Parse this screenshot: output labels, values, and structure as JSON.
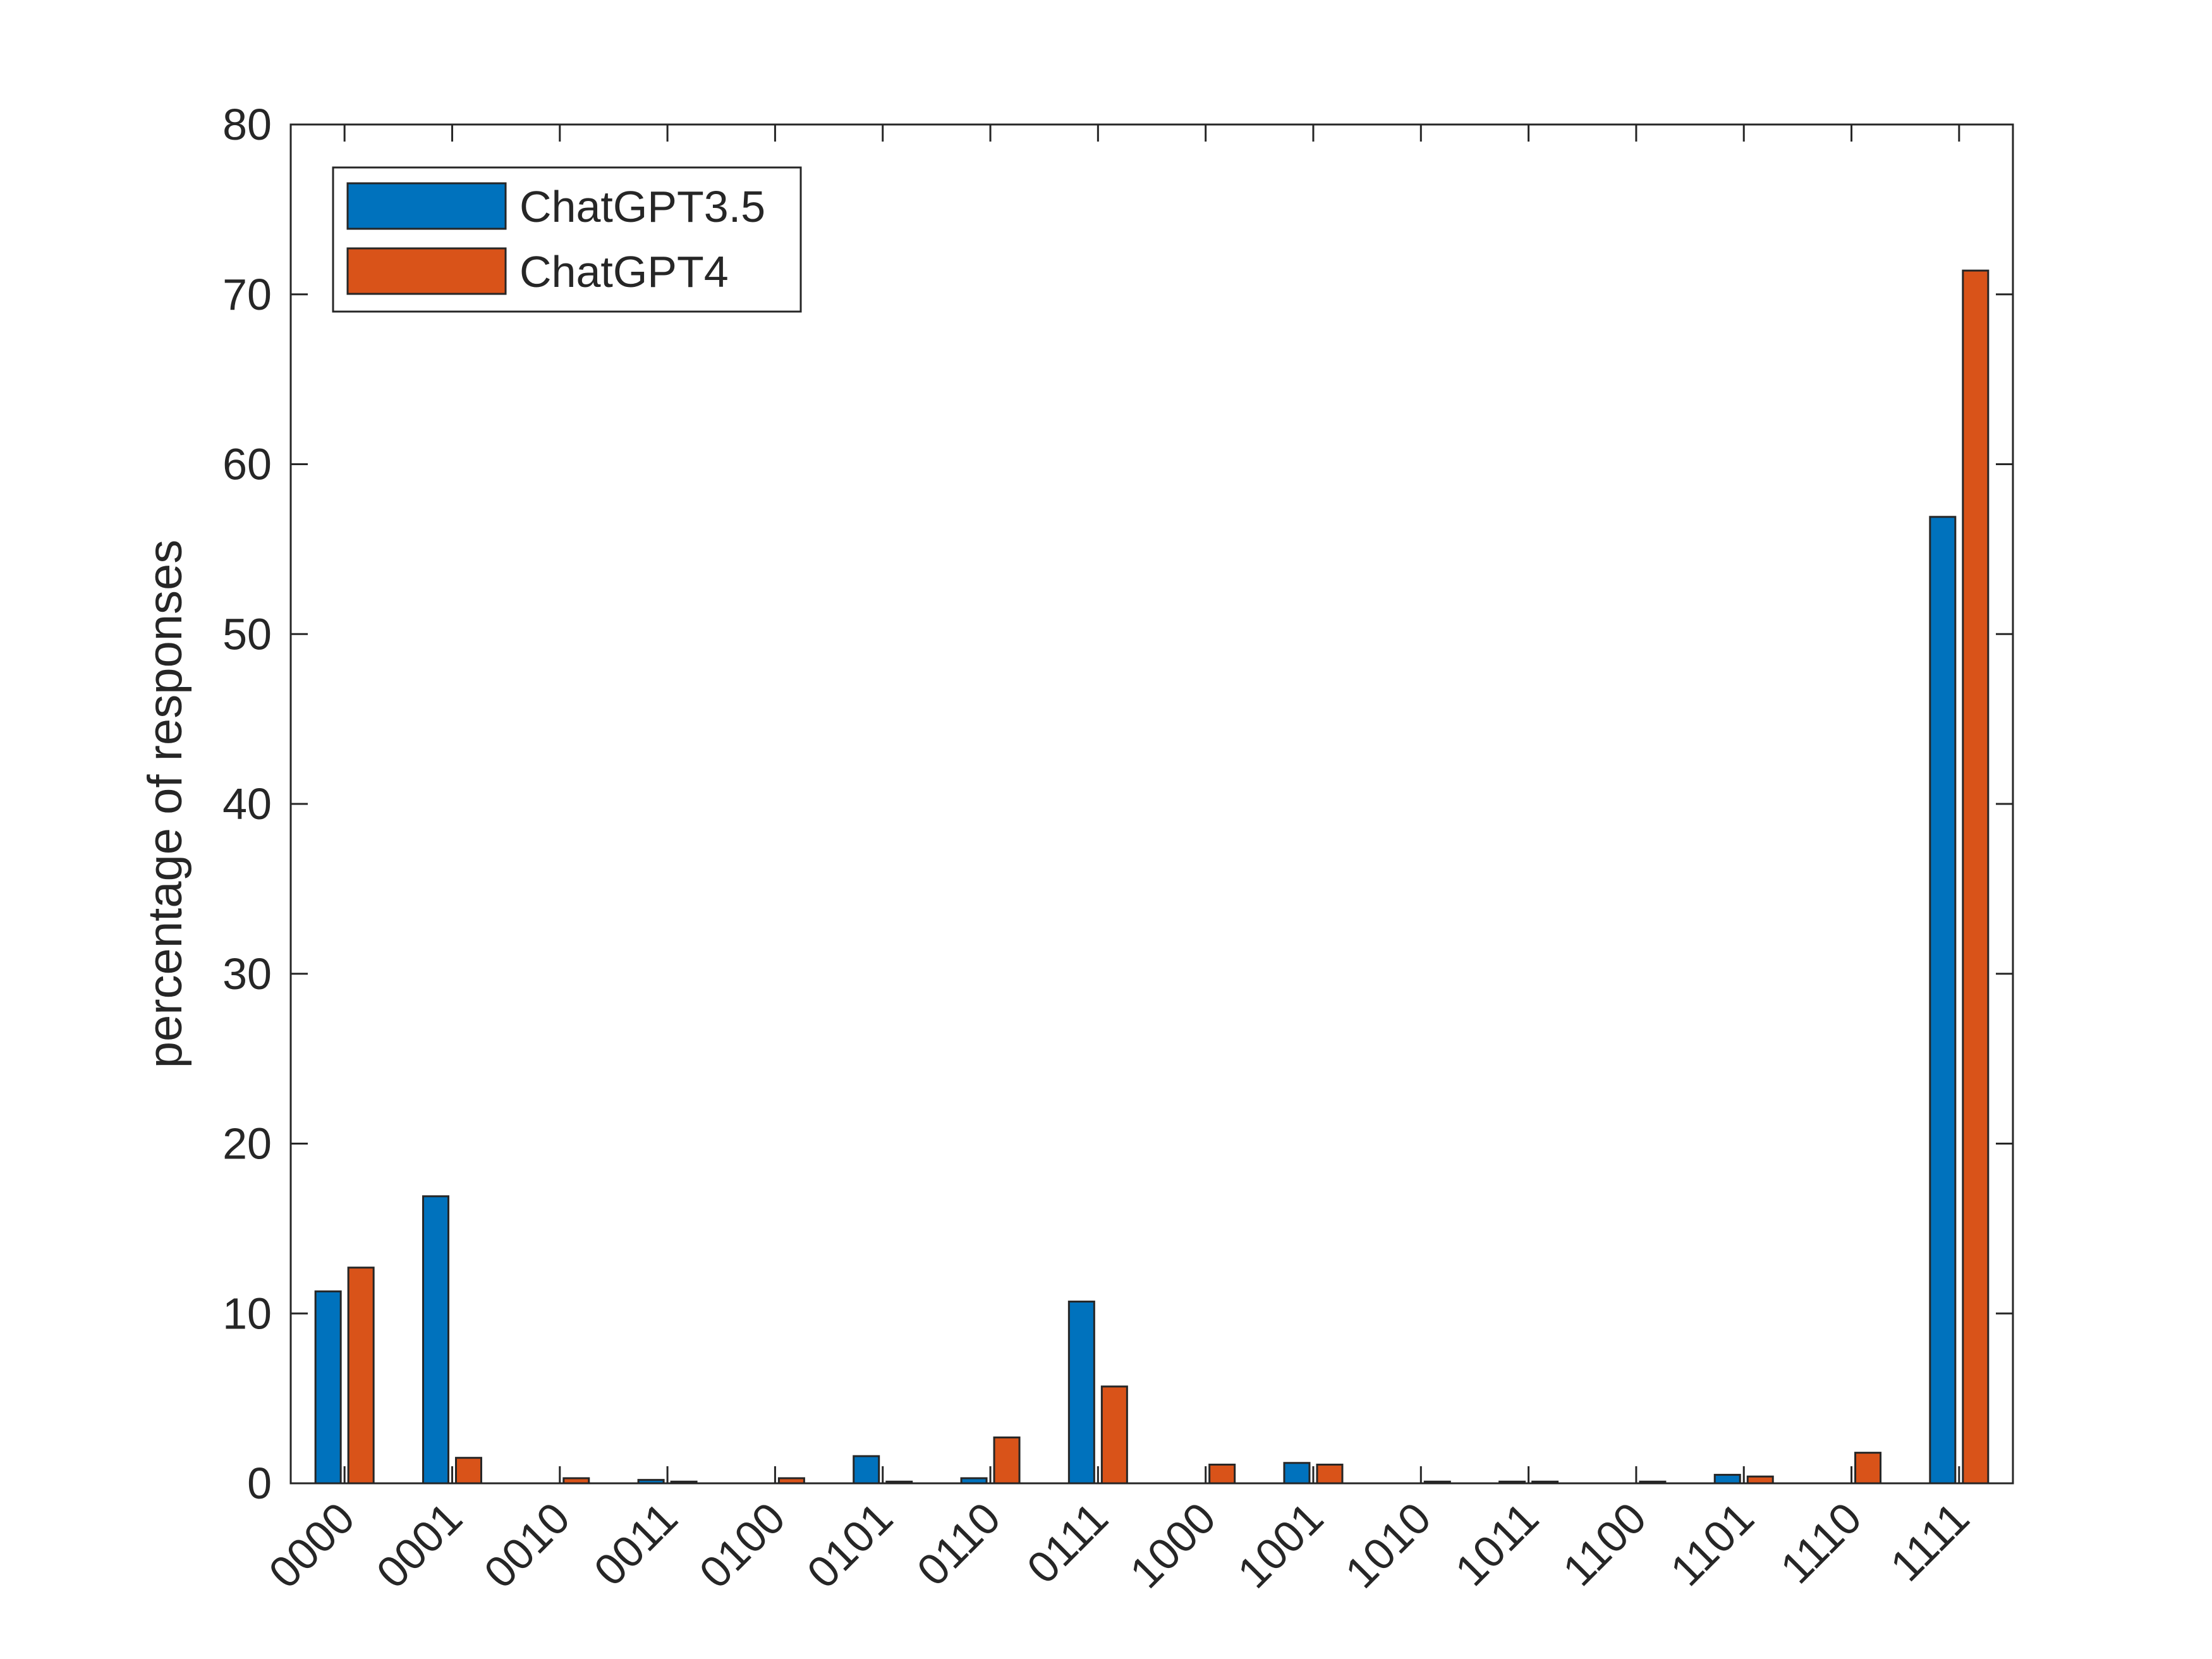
{
  "chart_data": {
    "type": "bar",
    "title": "",
    "xlabel": "",
    "ylabel": "percentage of responses",
    "ylim": [
      0,
      80
    ],
    "yticks": [
      0,
      10,
      20,
      30,
      40,
      50,
      60,
      70,
      80
    ],
    "categories": [
      "0000",
      "0001",
      "0010",
      "0011",
      "0100",
      "0101",
      "0110",
      "0111",
      "1000",
      "1001",
      "1010",
      "1011",
      "1100",
      "1101",
      "1110",
      "1111"
    ],
    "series": [
      {
        "name": "ChatGPT3.5",
        "color": "#0072BD",
        "values": [
          11.3,
          16.9,
          0.0,
          0.2,
          0.0,
          1.6,
          0.3,
          10.7,
          0.0,
          1.2,
          0.0,
          0.1,
          0.0,
          0.5,
          0.0,
          56.9
        ]
      },
      {
        "name": "ChatGPT4",
        "color": "#D95319",
        "values": [
          12.7,
          1.5,
          0.3,
          0.1,
          0.3,
          0.1,
          2.7,
          5.7,
          1.1,
          1.1,
          0.1,
          0.1,
          0.1,
          0.4,
          1.8,
          71.4
        ]
      }
    ],
    "legend": {
      "position": "top-left",
      "box": true
    },
    "grid": false,
    "box": true
  }
}
